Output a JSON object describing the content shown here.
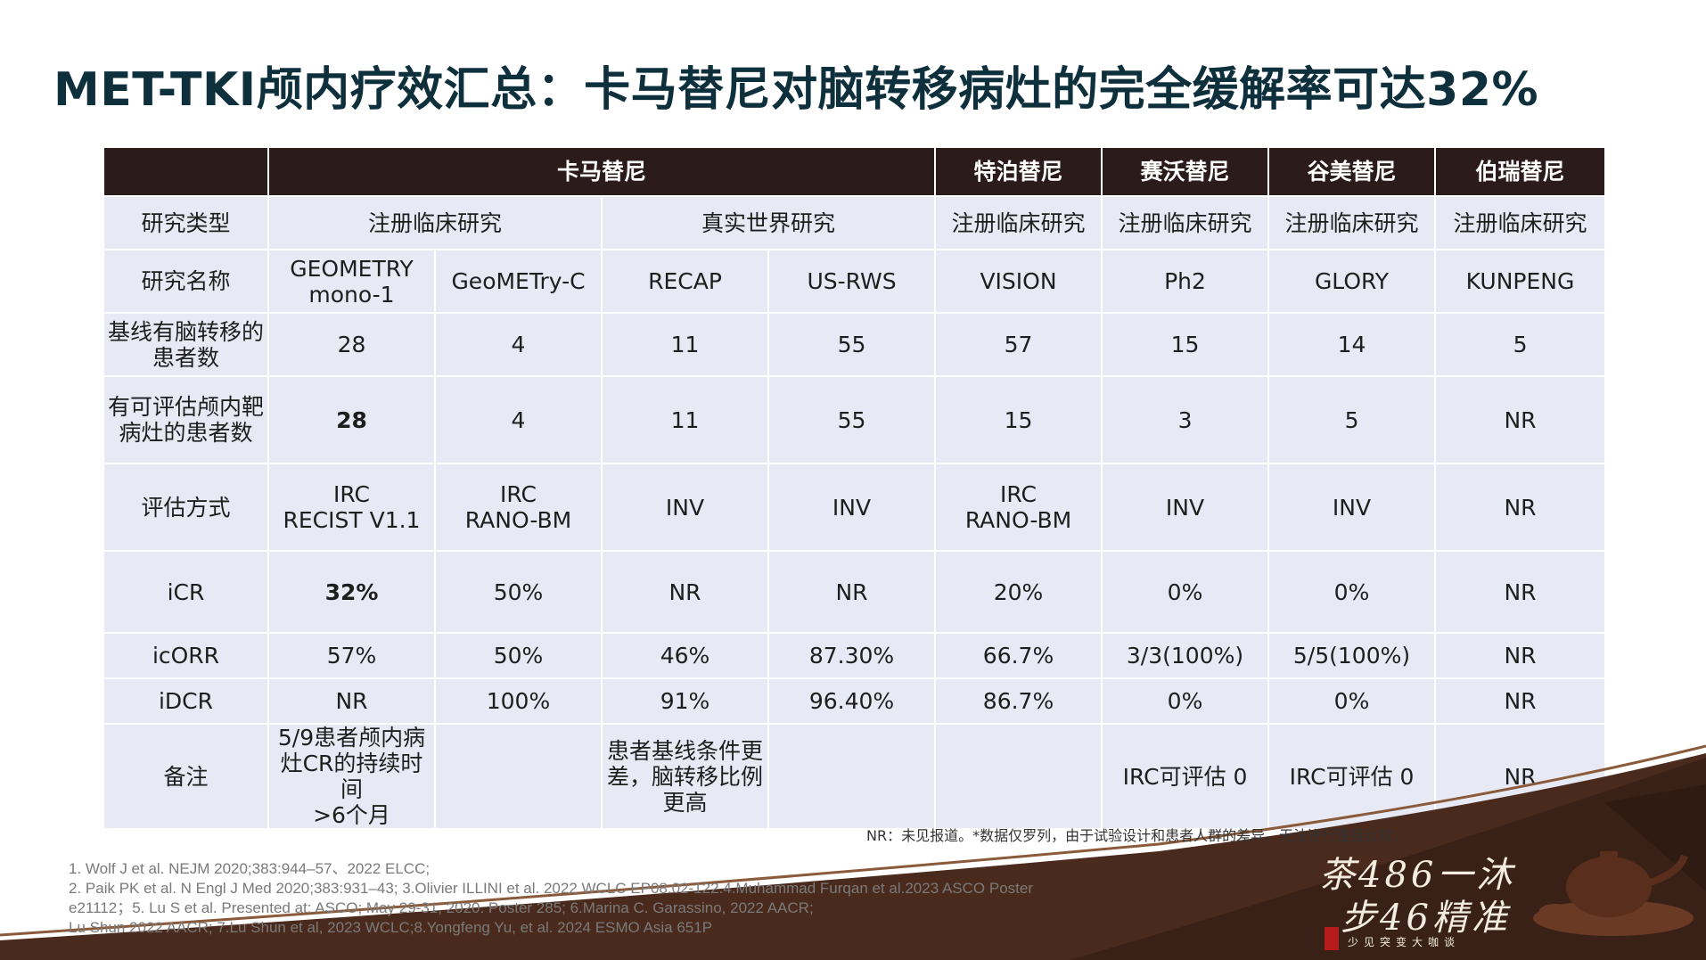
{
  "title": "MET-TKI颅内疗效汇总：卡马替尼对脑转移病灶的完全缓解率可达32%",
  "header": [
    "",
    "卡马替尼",
    "特泊替尼",
    "赛沃替尼",
    "谷美替尼",
    "伯瑞替尼"
  ],
  "rows": {
    "type": {
      "label": "研究类型",
      "capmatinib_reg": "注册临床研究",
      "capmatinib_rw": "真实世界研究",
      "tepotinib": "注册临床研究",
      "savolitinib": "注册临床研究",
      "glumetinib": "注册临床研究",
      "bozitinib": "注册临床研究"
    },
    "name": {
      "label": "研究名称",
      "values": [
        "GEOMETRY\nmono-1",
        "GeoMETry-C",
        "RECAP",
        "US-RWS",
        "VISION",
        "Ph2",
        "GLORY",
        "KUNPENG"
      ]
    },
    "baseline": {
      "label": "基线有脑转移的\n患者数",
      "values": [
        "28",
        "4",
        "11",
        "55",
        "57",
        "15",
        "14",
        "5"
      ]
    },
    "evaluable": {
      "label": "有可评估颅内靶\n病灶的患者数",
      "values": [
        "28",
        "4",
        "11",
        "55",
        "15",
        "3",
        "5",
        "NR"
      ]
    },
    "method": {
      "label": "评估方式",
      "values": [
        "IRC\nRECIST V1.1",
        "IRC\nRANO-BM",
        "INV",
        "INV",
        "IRC\nRANO-BM",
        "INV",
        "INV",
        "NR"
      ]
    },
    "icr": {
      "label": "iCR",
      "values": [
        "32%",
        "50%",
        "NR",
        "NR",
        "20%",
        "0%",
        "0%",
        "NR"
      ]
    },
    "icorr": {
      "label": "icORR",
      "values": [
        "57%",
        "50%",
        "46%",
        "87.30%",
        "66.7%",
        "3/3(100%)",
        "5/5(100%)",
        "NR"
      ]
    },
    "idcr": {
      "label": "iDCR",
      "values": [
        "NR",
        "100%",
        "91%",
        "96.40%",
        "86.7%",
        "0%",
        "0%",
        "NR"
      ]
    },
    "notes": {
      "label": "备注",
      "values": [
        "5/9患者颅内病\n灶CR的持续时间\n>6个月",
        "",
        "患者基线条件更\n差，脑转移比例\n更高",
        "",
        "",
        "IRC可评估 0",
        "IRC可评估 0",
        "NR"
      ]
    }
  },
  "footnote": "NR：未见报道。*数据仅罗列，由于试验设计和患者人群的差异，无法进行直接比较。",
  "references": [
    "1. Wolf J et al. NEJM 2020;383:944–57、2022 ELCC;",
    "2. Paik PK et al. N Engl J Med 2020;383:931–43; 3.Olivier ILLINI et al. 2022 WCLC EP08.02-122.4.Muhammad Furqan et al.2023 ASCO Poster",
    "e21112；5. Lu S et al. Presented at: ASCO; May 29-31, 2020. Poster 285; 6.Marina C. Garassino, 2022 AACR;",
    "Lu Shun 2022 AACR; 7.Lu Shun et al, 2023 WCLC;8.Yongfeng Yu, et al. 2024 ESMO Asia 651P"
  ],
  "slogan_line1": "茶486一沐",
  "slogan_line2": "步46精准",
  "slogan_small": "少见突变大咖谈",
  "colors": {
    "header_bg": "#2b1c1b",
    "cell_bg": "#e7eaf4",
    "title": "#0e2f3c",
    "highlight": "#e8141a",
    "brown": "#4a2a1c"
  }
}
